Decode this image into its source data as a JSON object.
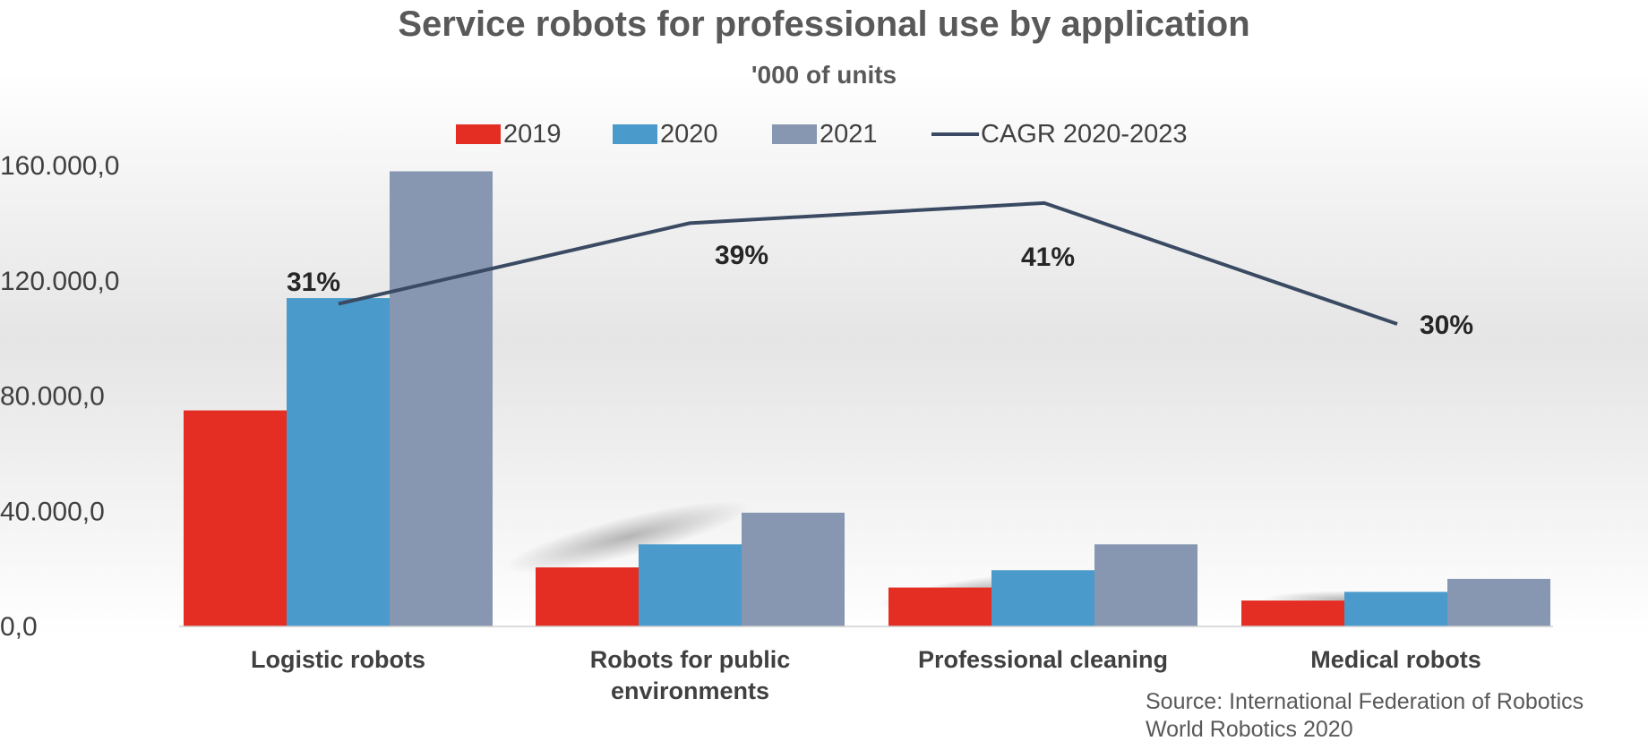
{
  "chart_data": {
    "type": "bar",
    "title": "Service robots for professional use by application",
    "subtitle": "'000 of units",
    "categories": [
      [
        "Logistic robots"
      ],
      [
        "Robots for public",
        "environments"
      ],
      [
        "Professional cleaning"
      ],
      [
        "Medical robots"
      ]
    ],
    "series": [
      {
        "name": "2019",
        "color": "#e42e24",
        "values": [
          75000,
          20500,
          13500,
          9000
        ]
      },
      {
        "name": "2020",
        "color": "#4a9bcb",
        "values": [
          114000,
          28500,
          19500,
          12000
        ]
      },
      {
        "name": "2021",
        "color": "#8797b1",
        "values": [
          158000,
          39500,
          28500,
          16500
        ]
      }
    ],
    "line_series": {
      "name": "CAGR 2020-2023",
      "color": "#3a4a62",
      "values": [
        112000,
        140000,
        147000,
        105000
      ],
      "labels": [
        "31%",
        "39%",
        "41%",
        "30%"
      ]
    },
    "y_axis": {
      "ticks": [
        0,
        40000,
        80000,
        120000,
        160000
      ],
      "tick_labels": [
        "0,0",
        "40.000,0",
        "80.000,0",
        "120.000,0",
        "160.000,0"
      ],
      "ylim": [
        0,
        160000
      ]
    },
    "grid": false,
    "legend": "top-center"
  },
  "source": {
    "line1": "Source: International Federation of Robotics",
    "line2": "World Robotics 2020"
  }
}
